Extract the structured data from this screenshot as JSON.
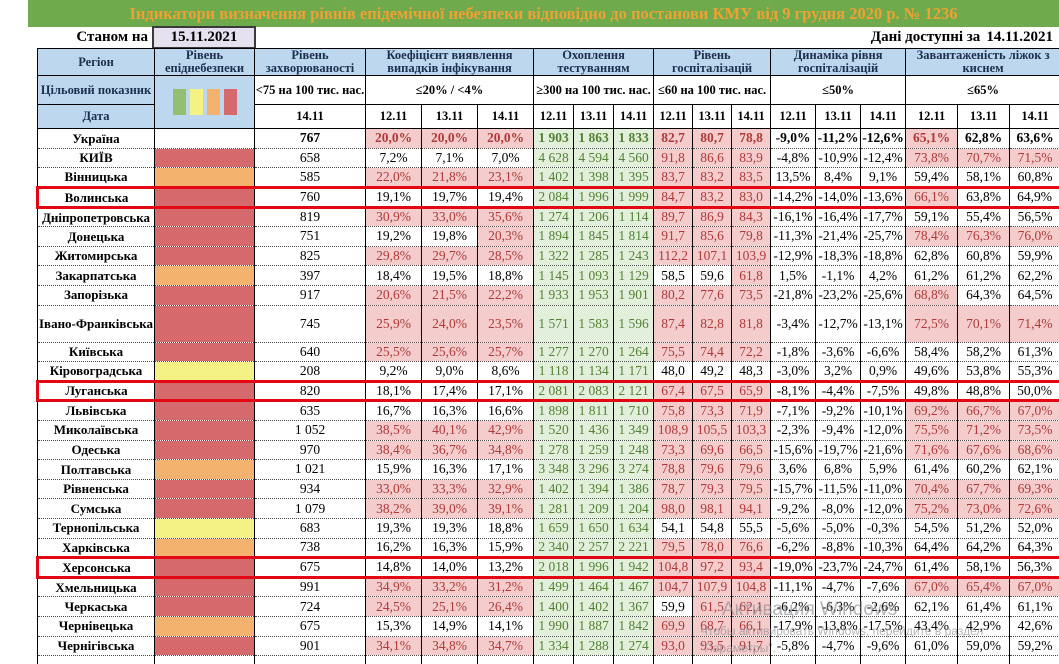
{
  "title": "Індикатори визначення рівнів епідемічної небезпеки відповідно до постанови КМУ від 9 грудня 2020 р. № 1236",
  "header": {
    "as_of_label": "Станом на",
    "as_of_date": "15.11.2021",
    "data_available_label": "Дані доступні за",
    "data_available_date": "14.11.2021"
  },
  "colors": {
    "title_bg": "#6faa4c",
    "title_text": "#eda233",
    "header_blue": "#bdd7ee",
    "pink_bg": "#f4cccc",
    "pink_text": "#ae3a3a",
    "green_bg": "#e2efda",
    "green_text": "#538135",
    "level_red": "#d5696b",
    "level_orange": "#f4b26f",
    "level_yellow": "#f5f285",
    "level_green": "#93bf72",
    "highlight_border": "#e30613",
    "as_of_box_bg": "#e7e1ef"
  },
  "table": {
    "corner": {
      "region": "Регіон",
      "target": "Цільовий показник",
      "date": "Дата"
    },
    "risk": {
      "title": "Рівень епіднебезпеки",
      "legend_colors": [
        "#93bf72",
        "#f5f285",
        "#f4b26f",
        "#d5696b"
      ],
      "legend_names": [
        "green",
        "yellow",
        "orange",
        "red"
      ]
    },
    "groups": [
      {
        "title": "Рівень захворюваності",
        "threshold": "<75 на 100 тис. нас.",
        "dates": [
          "14.11"
        ]
      },
      {
        "title": "Коефіцієнт виявлення випадків інфікування",
        "threshold": "≤20% / <4%",
        "dates": [
          "12.11",
          "13.11",
          "14.11"
        ]
      },
      {
        "title": "Охоплення тестуванням",
        "threshold": "≥300 на 100 тис. нас.",
        "dates": [
          "12.11",
          "13.11",
          "14.11"
        ]
      },
      {
        "title": "Рівень госпіталізацій",
        "threshold": "≤60 на 100 тис. нас.",
        "dates": [
          "12.11",
          "13.11",
          "14.11"
        ]
      },
      {
        "title": "Динаміка рівня госпіталізацій",
        "threshold": "≤50%",
        "dates": [
          "12.11",
          "13.11",
          "14.11"
        ]
      },
      {
        "title": "Завантаженість ліжок з киснем",
        "threshold": "≤65%",
        "dates": [
          "12.11",
          "13.11",
          "14.11"
        ]
      }
    ],
    "rows": [
      {
        "name": "Україна",
        "level": "none",
        "hl": false,
        "bold": true,
        "tall": false,
        "inc": "767",
        "det": [
          "20,0%",
          "20,0%",
          "20,0%"
        ],
        "detf": "rrr",
        "test": [
          "1 903",
          "1 863",
          "1 833"
        ],
        "hosp": [
          "82,7",
          "80,7",
          "78,8"
        ],
        "hospf": "rrr",
        "dyn": [
          "-9,0%",
          "-11,2%",
          "-12,6%"
        ],
        "oxy": [
          "65,1%",
          "62,8%",
          "63,6%"
        ],
        "oxyf": "rww"
      },
      {
        "name": "КИЇВ",
        "level": "red",
        "hl": false,
        "bold": false,
        "tall": false,
        "inc": "658",
        "det": [
          "7,2%",
          "7,1%",
          "7,0%"
        ],
        "detf": "www",
        "test": [
          "4 628",
          "4 594",
          "4 560"
        ],
        "hosp": [
          "91,8",
          "86,6",
          "83,9"
        ],
        "hospf": "rrr",
        "dyn": [
          "-4,8%",
          "-10,9%",
          "-12,4%"
        ],
        "oxy": [
          "73,8%",
          "70,7%",
          "71,5%"
        ],
        "oxyf": "rrr"
      },
      {
        "name": "Вінницька",
        "level": "orange",
        "hl": false,
        "bold": false,
        "tall": false,
        "inc": "585",
        "det": [
          "22,0%",
          "21,8%",
          "23,1%"
        ],
        "detf": "rrr",
        "test": [
          "1 402",
          "1 398",
          "1 395"
        ],
        "hosp": [
          "83,7",
          "83,2",
          "83,5"
        ],
        "hospf": "rrr",
        "dyn": [
          "13,5%",
          "8,4%",
          "9,1%"
        ],
        "oxy": [
          "59,4%",
          "58,1%",
          "60,8%"
        ],
        "oxyf": "www"
      },
      {
        "name": "Волинська",
        "level": "red",
        "hl": true,
        "bold": false,
        "tall": false,
        "inc": "760",
        "det": [
          "19,1%",
          "19,7%",
          "19,4%"
        ],
        "detf": "www",
        "test": [
          "2 084",
          "1 996",
          "1 999"
        ],
        "hosp": [
          "84,7",
          "83,2",
          "83,0"
        ],
        "hospf": "rrr",
        "dyn": [
          "-14,2%",
          "-14,0%",
          "-13,6%"
        ],
        "oxy": [
          "66,1%",
          "63,8%",
          "64,9%"
        ],
        "oxyf": "rww"
      },
      {
        "name": "Дніпропетровська",
        "level": "red",
        "hl": false,
        "bold": false,
        "tall": false,
        "inc": "819",
        "det": [
          "30,9%",
          "33,0%",
          "35,6%"
        ],
        "detf": "rrr",
        "test": [
          "1 274",
          "1 206",
          "1 114"
        ],
        "hosp": [
          "89,7",
          "86,9",
          "84,3"
        ],
        "hospf": "rrr",
        "dyn": [
          "-16,1%",
          "-16,4%",
          "-17,7%"
        ],
        "oxy": [
          "59,1%",
          "55,4%",
          "56,5%"
        ],
        "oxyf": "www"
      },
      {
        "name": "Донецька",
        "level": "red",
        "hl": false,
        "bold": false,
        "tall": false,
        "inc": "751",
        "det": [
          "19,2%",
          "19,8%",
          "20,3%"
        ],
        "detf": "wwr",
        "test": [
          "1 894",
          "1 845",
          "1 814"
        ],
        "hosp": [
          "91,7",
          "85,6",
          "79,8"
        ],
        "hospf": "rrr",
        "dyn": [
          "-11,3%",
          "-21,4%",
          "-25,7%"
        ],
        "oxy": [
          "78,4%",
          "76,3%",
          "76,0%"
        ],
        "oxyf": "rrr"
      },
      {
        "name": "Житомирська",
        "level": "red",
        "hl": false,
        "bold": false,
        "tall": false,
        "inc": "825",
        "det": [
          "29,8%",
          "29,7%",
          "28,5%"
        ],
        "detf": "rrr",
        "test": [
          "1 322",
          "1 285",
          "1 243"
        ],
        "hosp": [
          "112,2",
          "107,1",
          "103,9"
        ],
        "hospf": "rrr",
        "dyn": [
          "-12,9%",
          "-18,3%",
          "-18,8%"
        ],
        "oxy": [
          "62,8%",
          "60,8%",
          "59,9%"
        ],
        "oxyf": "www"
      },
      {
        "name": "Закарпатська",
        "level": "orange",
        "hl": false,
        "bold": false,
        "tall": false,
        "inc": "397",
        "det": [
          "18,4%",
          "19,5%",
          "18,8%"
        ],
        "detf": "www",
        "test": [
          "1 145",
          "1 093",
          "1 129"
        ],
        "hosp": [
          "58,5",
          "59,6",
          "61,8"
        ],
        "hospf": "wwr",
        "dyn": [
          "1,5%",
          "-1,1%",
          "4,2%"
        ],
        "oxy": [
          "61,2%",
          "61,2%",
          "62,2%"
        ],
        "oxyf": "www"
      },
      {
        "name": "Запорізька",
        "level": "red",
        "hl": false,
        "bold": false,
        "tall": false,
        "inc": "917",
        "det": [
          "20,6%",
          "21,5%",
          "22,2%"
        ],
        "detf": "rrr",
        "test": [
          "1 933",
          "1 953",
          "1 901"
        ],
        "hosp": [
          "80,2",
          "77,6",
          "73,5"
        ],
        "hospf": "rrr",
        "dyn": [
          "-21,8%",
          "-23,2%",
          "-25,6%"
        ],
        "oxy": [
          "68,8%",
          "64,3%",
          "64,5%"
        ],
        "oxyf": "rww"
      },
      {
        "name": "Івано-Франківська",
        "level": "red",
        "hl": false,
        "bold": false,
        "tall": true,
        "inc": "745",
        "det": [
          "25,9%",
          "24,0%",
          "23,5%"
        ],
        "detf": "rrr",
        "test": [
          "1 571",
          "1 583",
          "1 596"
        ],
        "hosp": [
          "87,4",
          "82,8",
          "81,8"
        ],
        "hospf": "rrr",
        "dyn": [
          "-3,4%",
          "-12,7%",
          "-13,1%"
        ],
        "oxy": [
          "72,5%",
          "70,1%",
          "71,4%"
        ],
        "oxyf": "rrr"
      },
      {
        "name": "Київська",
        "level": "red",
        "hl": false,
        "bold": false,
        "tall": false,
        "inc": "640",
        "det": [
          "25,5%",
          "25,6%",
          "25,7%"
        ],
        "detf": "rrr",
        "test": [
          "1 277",
          "1 270",
          "1 264"
        ],
        "hosp": [
          "75,5",
          "74,4",
          "72,2"
        ],
        "hospf": "rrr",
        "dyn": [
          "-1,8%",
          "-3,6%",
          "-6,6%"
        ],
        "oxy": [
          "58,4%",
          "58,2%",
          "61,3%"
        ],
        "oxyf": "www"
      },
      {
        "name": "Кіровоградська",
        "level": "yellow",
        "hl": false,
        "bold": false,
        "tall": false,
        "inc": "208",
        "det": [
          "9,2%",
          "9,0%",
          "8,6%"
        ],
        "detf": "www",
        "test": [
          "1 118",
          "1 134",
          "1 171"
        ],
        "hosp": [
          "48,0",
          "49,2",
          "48,3"
        ],
        "hospf": "www",
        "dyn": [
          "-3,0%",
          "3,2%",
          "0,9%"
        ],
        "oxy": [
          "49,6%",
          "53,8%",
          "55,3%"
        ],
        "oxyf": "www"
      },
      {
        "name": "Луганська",
        "level": "red",
        "hl": true,
        "bold": false,
        "tall": false,
        "inc": "820",
        "det": [
          "18,1%",
          "17,4%",
          "17,1%"
        ],
        "detf": "www",
        "test": [
          "2 081",
          "2 083",
          "2 121"
        ],
        "hosp": [
          "67,4",
          "67,5",
          "65,9"
        ],
        "hospf": "rrr",
        "dyn": [
          "-8,1%",
          "-4,4%",
          "-7,5%"
        ],
        "oxy": [
          "49,8%",
          "48,8%",
          "50,0%"
        ],
        "oxyf": "www"
      },
      {
        "name": "Львівська",
        "level": "red",
        "hl": false,
        "bold": false,
        "tall": false,
        "inc": "635",
        "det": [
          "16,7%",
          "16,3%",
          "16,6%"
        ],
        "detf": "www",
        "test": [
          "1 898",
          "1 811",
          "1 710"
        ],
        "hosp": [
          "75,8",
          "73,3",
          "71,9"
        ],
        "hospf": "rrr",
        "dyn": [
          "-7,1%",
          "-9,2%",
          "-10,1%"
        ],
        "oxy": [
          "69,2%",
          "66,7%",
          "67,0%"
        ],
        "oxyf": "rrr"
      },
      {
        "name": "Миколаївська",
        "level": "red",
        "hl": false,
        "bold": false,
        "tall": false,
        "inc": "1 052",
        "det": [
          "38,5%",
          "40,1%",
          "42,9%"
        ],
        "detf": "rrr",
        "test": [
          "1 520",
          "1 436",
          "1 349"
        ],
        "hosp": [
          "108,9",
          "105,5",
          "103,3"
        ],
        "hospf": "rrr",
        "dyn": [
          "-2,3%",
          "-9,4%",
          "-12,0%"
        ],
        "oxy": [
          "75,5%",
          "71,2%",
          "73,5%"
        ],
        "oxyf": "rrr"
      },
      {
        "name": "Одеська",
        "level": "red",
        "hl": false,
        "bold": false,
        "tall": false,
        "inc": "970",
        "det": [
          "38,4%",
          "36,7%",
          "34,8%"
        ],
        "detf": "rrr",
        "test": [
          "1 278",
          "1 259",
          "1 248"
        ],
        "hosp": [
          "73,3",
          "69,6",
          "66,5"
        ],
        "hospf": "rrr",
        "dyn": [
          "-15,6%",
          "-19,7%",
          "-21,6%"
        ],
        "oxy": [
          "71,6%",
          "67,6%",
          "68,6%"
        ],
        "oxyf": "rrr"
      },
      {
        "name": "Полтавська",
        "level": "orange",
        "hl": false,
        "bold": false,
        "tall": false,
        "inc": "1 021",
        "det": [
          "15,9%",
          "16,3%",
          "17,1%"
        ],
        "detf": "www",
        "test": [
          "3 348",
          "3 296",
          "3 274"
        ],
        "hosp": [
          "78,8",
          "79,6",
          "79,6"
        ],
        "hospf": "rrr",
        "dyn": [
          "3,6%",
          "6,8%",
          "5,9%"
        ],
        "oxy": [
          "61,4%",
          "60,2%",
          "62,1%"
        ],
        "oxyf": "www"
      },
      {
        "name": "Рівненська",
        "level": "red",
        "hl": false,
        "bold": false,
        "tall": false,
        "inc": "934",
        "det": [
          "33,0%",
          "33,3%",
          "32,9%"
        ],
        "detf": "rrr",
        "test": [
          "1 402",
          "1 394",
          "1 386"
        ],
        "hosp": [
          "78,7",
          "79,3",
          "79,5"
        ],
        "hospf": "rrr",
        "dyn": [
          "-15,7%",
          "-11,5%",
          "-11,0%"
        ],
        "oxy": [
          "70,4%",
          "67,7%",
          "69,3%"
        ],
        "oxyf": "rrr"
      },
      {
        "name": "Сумська",
        "level": "red",
        "hl": false,
        "bold": false,
        "tall": false,
        "inc": "1 079",
        "det": [
          "38,2%",
          "39,0%",
          "39,1%"
        ],
        "detf": "rrr",
        "test": [
          "1 281",
          "1 209",
          "1 204"
        ],
        "hosp": [
          "98,0",
          "98,1",
          "94,1"
        ],
        "hospf": "rrr",
        "dyn": [
          "-9,2%",
          "-8,0%",
          "-12,0%"
        ],
        "oxy": [
          "75,2%",
          "73,0%",
          "72,6%"
        ],
        "oxyf": "rrr"
      },
      {
        "name": "Тернопільська",
        "level": "yellow",
        "hl": false,
        "bold": false,
        "tall": false,
        "inc": "683",
        "det": [
          "19,3%",
          "19,3%",
          "18,8%"
        ],
        "detf": "www",
        "test": [
          "1 659",
          "1 650",
          "1 634"
        ],
        "hosp": [
          "54,1",
          "54,8",
          "55,5"
        ],
        "hospf": "www",
        "dyn": [
          "-5,6%",
          "-5,0%",
          "-0,3%"
        ],
        "oxy": [
          "54,5%",
          "51,2%",
          "52,0%"
        ],
        "oxyf": "www"
      },
      {
        "name": "Харківська",
        "level": "orange",
        "hl": false,
        "bold": false,
        "tall": false,
        "inc": "738",
        "det": [
          "16,2%",
          "16,3%",
          "15,9%"
        ],
        "detf": "www",
        "test": [
          "2 340",
          "2 257",
          "2 221"
        ],
        "hosp": [
          "79,5",
          "78,0",
          "76,6"
        ],
        "hospf": "rrr",
        "dyn": [
          "-6,2%",
          "-8,8%",
          "-10,3%"
        ],
        "oxy": [
          "64,4%",
          "64,2%",
          "64,3%"
        ],
        "oxyf": "www"
      },
      {
        "name": "Херсонська",
        "level": "red",
        "hl": true,
        "bold": false,
        "tall": false,
        "inc": "675",
        "det": [
          "14,8%",
          "14,0%",
          "13,2%"
        ],
        "detf": "www",
        "test": [
          "2 018",
          "1 996",
          "1 942"
        ],
        "hosp": [
          "104,8",
          "97,2",
          "93,4"
        ],
        "hospf": "rrr",
        "dyn": [
          "-19,0%",
          "-23,7%",
          "-24,7%"
        ],
        "oxy": [
          "61,4%",
          "58,1%",
          "56,3%"
        ],
        "oxyf": "www"
      },
      {
        "name": "Хмельницька",
        "level": "red",
        "hl": false,
        "bold": false,
        "tall": false,
        "inc": "991",
        "det": [
          "34,9%",
          "33,2%",
          "31,2%"
        ],
        "detf": "rrr",
        "test": [
          "1 499",
          "1 464",
          "1 467"
        ],
        "hosp": [
          "104,7",
          "107,9",
          "104,8"
        ],
        "hospf": "rrr",
        "dyn": [
          "-11,1%",
          "-4,7%",
          "-7,6%"
        ],
        "oxy": [
          "67,0%",
          "65,4%",
          "67,0%"
        ],
        "oxyf": "rrr"
      },
      {
        "name": "Черкаська",
        "level": "red",
        "hl": false,
        "bold": false,
        "tall": false,
        "inc": "724",
        "det": [
          "24,5%",
          "25,1%",
          "26,4%"
        ],
        "detf": "rrr",
        "test": [
          "1 400",
          "1 402",
          "1 367"
        ],
        "hosp": [
          "59,9",
          "61,5",
          "62,1"
        ],
        "hospf": "wrr",
        "dyn": [
          "-6,2%",
          "-6,3%",
          "-2,6%"
        ],
        "oxy": [
          "62,1%",
          "61,4%",
          "61,1%"
        ],
        "oxyf": "www"
      },
      {
        "name": "Чернівецька",
        "level": "orange",
        "hl": false,
        "bold": false,
        "tall": false,
        "inc": "675",
        "det": [
          "15,3%",
          "14,9%",
          "14,1%"
        ],
        "detf": "www",
        "test": [
          "1 990",
          "1 887",
          "1 842"
        ],
        "hosp": [
          "69,9",
          "68,7",
          "66,1"
        ],
        "hospf": "rrr",
        "dyn": [
          "-17,9%",
          "-13,8%",
          "-17,5%"
        ],
        "oxy": [
          "43,4%",
          "42,9%",
          "42,6%"
        ],
        "oxyf": "www"
      },
      {
        "name": "Чернігівська",
        "level": "red",
        "hl": false,
        "bold": false,
        "tall": false,
        "inc": "901",
        "det": [
          "34,1%",
          "34,8%",
          "34,7%"
        ],
        "detf": "rrr",
        "test": [
          "1 334",
          "1 288",
          "1 274"
        ],
        "hosp": [
          "93,0",
          "93,5",
          "91,7"
        ],
        "hospf": "rrr",
        "dyn": [
          "-5,8%",
          "-4,7%",
          "-9,6%"
        ],
        "oxy": [
          "61,0%",
          "59,0%",
          "59,2%"
        ],
        "oxyf": "www"
      }
    ]
  },
  "watermark": {
    "line1": "Активация Windows",
    "line2": "Чтобы активировать Windows, перейдите в раздел",
    "line3": "\"Параметры\"."
  }
}
